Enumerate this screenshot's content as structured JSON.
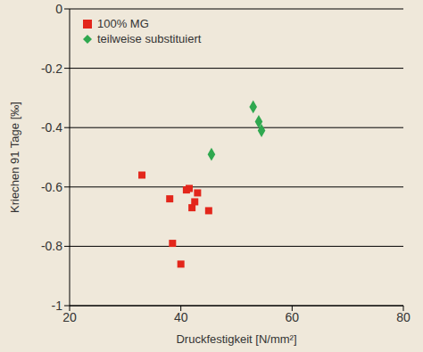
{
  "chart_data": {
    "type": "scatter",
    "x_label": "Druckfestigkeit  [N/mm²]",
    "y_label": "Kriechen 91 Tage [‰]",
    "xlim": [
      20,
      80
    ],
    "xticks": [
      20,
      40,
      60,
      80
    ],
    "ylim": [
      -1,
      0
    ],
    "yticks": [
      -1,
      -0.8,
      -0.6,
      -0.4,
      -0.2,
      0
    ],
    "grid": true,
    "legend": "upper left",
    "series": [
      {
        "name": "100% MG",
        "color": "#e3261b",
        "marker": "square",
        "x": [
          33,
          38,
          38.5,
          40,
          41,
          41.5,
          42,
          42.5,
          43,
          45
        ],
        "values": [
          -0.56,
          -0.64,
          -0.79,
          -0.86,
          -0.61,
          -0.605,
          -0.67,
          -0.65,
          -0.62,
          -0.68
        ]
      },
      {
        "name": "teilweise substituiert",
        "color": "#2fa84f",
        "marker": "diamond",
        "x": [
          45.5,
          53,
          54,
          54.5
        ],
        "values": [
          -0.49,
          -0.33,
          -0.38,
          -0.41
        ]
      }
    ]
  }
}
